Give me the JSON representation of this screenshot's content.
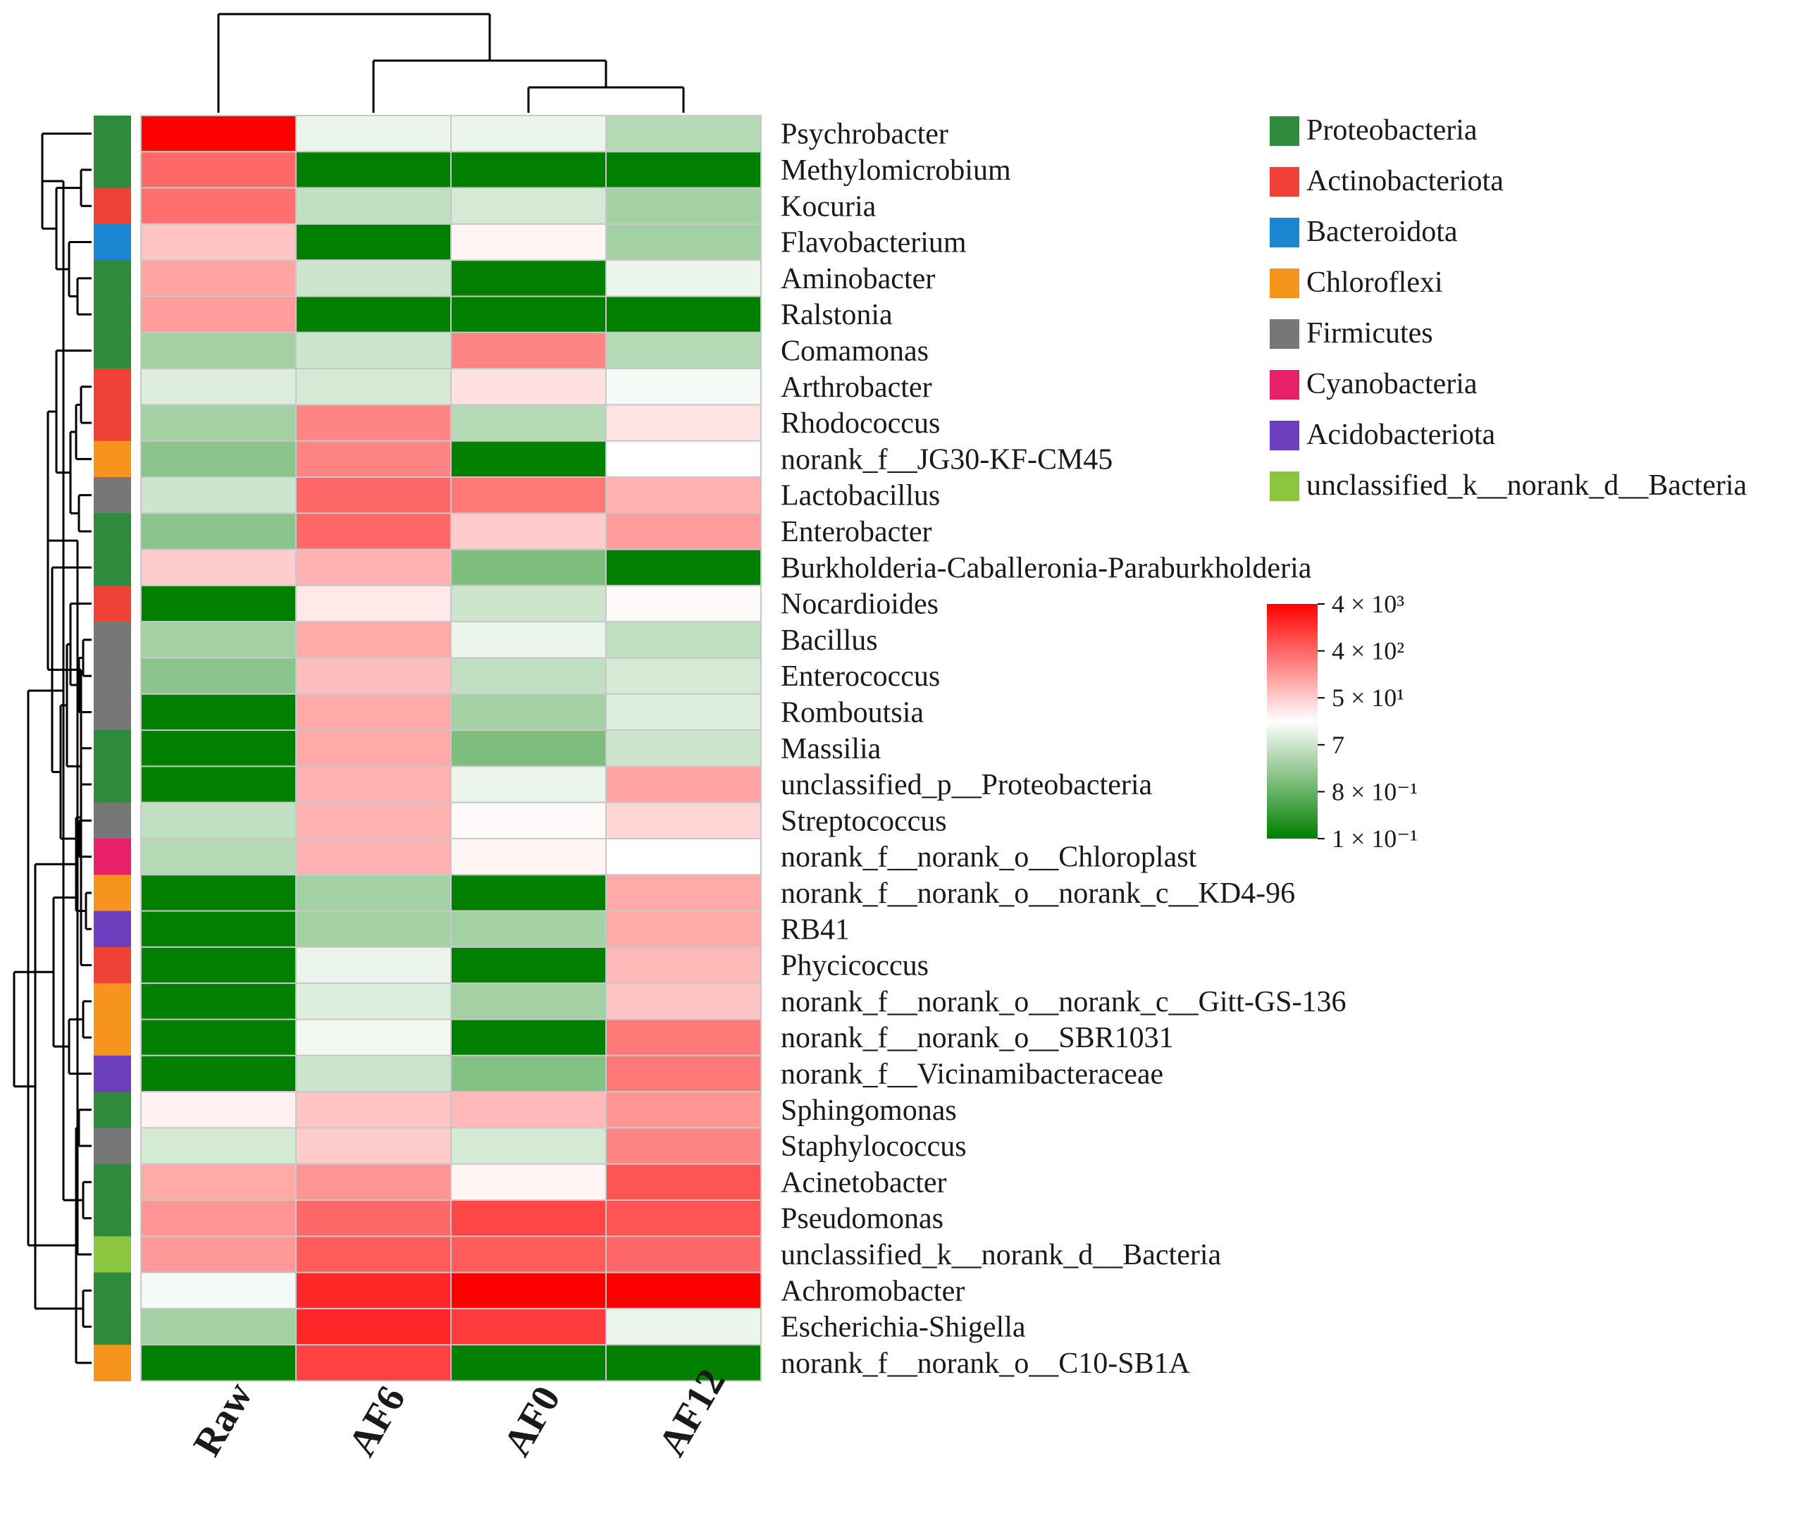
{
  "chart_data": {
    "type": "heatmap",
    "title": "",
    "columns": [
      "Raw",
      "AF6",
      "AF0",
      "AF12"
    ],
    "rows": [
      {
        "genus": "Psychrobacter",
        "phylum": "Proteobacteria",
        "values": [
          4000,
          5,
          5,
          2
        ]
      },
      {
        "genus": "Methylomicrobium",
        "phylum": "Proteobacteria",
        "values": [
          300,
          0.1,
          0.1,
          0.1
        ]
      },
      {
        "genus": "Kocuria",
        "phylum": "Actinobacteriota",
        "values": [
          250,
          2.5,
          3.5,
          1.5
        ]
      },
      {
        "genus": "Flavobacterium",
        "phylum": "Bacteroidota",
        "values": [
          30,
          0.1,
          9,
          1.5
        ]
      },
      {
        "genus": "Aminobacter",
        "phylum": "Proteobacteria",
        "values": [
          70,
          3,
          0.1,
          5
        ]
      },
      {
        "genus": "Ralstonia",
        "phylum": "Proteobacteria",
        "values": [
          80,
          0.1,
          0.1,
          0.1
        ]
      },
      {
        "genus": "Comamonas",
        "phylum": "Proteobacteria",
        "values": [
          1.5,
          3,
          150,
          2
        ]
      },
      {
        "genus": "Arthrobacter",
        "phylum": "Actinobacteriota",
        "values": [
          4,
          3.5,
          15,
          6
        ]
      },
      {
        "genus": "Rhodococcus",
        "phylum": "Actinobacteriota",
        "values": [
          1.5,
          150,
          2,
          14
        ]
      },
      {
        "genus": "norank_f__JG30-KF-CM45",
        "phylum": "Chloroflexi",
        "values": [
          1,
          150,
          0.1,
          7
        ]
      },
      {
        "genus": "Lactobacillus",
        "phylum": "Firmicutes",
        "values": [
          3,
          300,
          200,
          50
        ]
      },
      {
        "genus": "Enterobacter",
        "phylum": "Proteobacteria",
        "values": [
          1,
          300,
          25,
          80
        ]
      },
      {
        "genus": "Burkholderia-Caballeronia-Paraburkholderia",
        "phylum": "Proteobacteria",
        "values": [
          25,
          50,
          0.8,
          0.1
        ]
      },
      {
        "genus": "Nocardioides",
        "phylum": "Actinobacteriota",
        "values": [
          0.1,
          12,
          3,
          8
        ]
      },
      {
        "genus": "Bacillus",
        "phylum": "Firmicutes",
        "values": [
          1.5,
          60,
          5,
          2.5
        ]
      },
      {
        "genus": "Enterococcus",
        "phylum": "Firmicutes",
        "values": [
          1,
          35,
          2.5,
          3.5
        ]
      },
      {
        "genus": "Romboutsia",
        "phylum": "Firmicutes",
        "values": [
          0.1,
          60,
          1.5,
          4
        ]
      },
      {
        "genus": "Massilia",
        "phylum": "Proteobacteria",
        "values": [
          0.1,
          60,
          0.8,
          3
        ]
      },
      {
        "genus": "unclassified_p__Proteobacteria",
        "phylum": "Proteobacteria",
        "values": [
          0.1,
          50,
          5,
          70
        ]
      },
      {
        "genus": "Streptococcus",
        "phylum": "Firmicutes",
        "values": [
          2.5,
          50,
          8,
          20
        ]
      },
      {
        "genus": "norank_f__norank_o__Chloroplast",
        "phylum": "Cyanobacteria",
        "values": [
          2,
          50,
          9,
          7
        ]
      },
      {
        "genus": "norank_f__norank_o__norank_c__KD4-96",
        "phylum": "Chloroflexi",
        "values": [
          0.1,
          1.5,
          0.1,
          60
        ]
      },
      {
        "genus": "RB41",
        "phylum": "Acidobacteriota",
        "values": [
          0.1,
          1.5,
          1.5,
          60
        ]
      },
      {
        "genus": "Phycicoccus",
        "phylum": "Actinobacteriota",
        "values": [
          0.1,
          5,
          0.1,
          40
        ]
      },
      {
        "genus": "norank_f__norank_o__norank_c__Gitt-GS-136",
        "phylum": "Chloroflexi",
        "values": [
          0.1,
          4,
          1.5,
          30
        ]
      },
      {
        "genus": "norank_f__norank_o__SBR1031",
        "phylum": "Chloroflexi",
        "values": [
          0.1,
          5.5,
          0.1,
          200
        ]
      },
      {
        "genus": "norank_f__Vicinamibacteraceae",
        "phylum": "Acidobacteriota",
        "values": [
          0.1,
          3,
          0.9,
          200
        ]
      },
      {
        "genus": "Sphingomonas",
        "phylum": "Proteobacteria",
        "values": [
          10,
          30,
          40,
          100
        ]
      },
      {
        "genus": "Staphylococcus",
        "phylum": "Firmicutes",
        "values": [
          3.5,
          25,
          3.5,
          150
        ]
      },
      {
        "genus": "Acinetobacter",
        "phylum": "Proteobacteria",
        "values": [
          60,
          100,
          9,
          500
        ]
      },
      {
        "genus": "Pseudomonas",
        "phylum": "Proteobacteria",
        "values": [
          100,
          300,
          700,
          500
        ]
      },
      {
        "genus": "unclassified_k__norank_d__Bacteria",
        "phylum": "unclassified_k__norank_d__Bacteria",
        "values": [
          90,
          400,
          400,
          300
        ]
      },
      {
        "genus": "Achromobacter",
        "phylum": "Proteobacteria",
        "values": [
          6,
          1500,
          4000,
          4000
        ]
      },
      {
        "genus": "Escherichia-Shigella",
        "phylum": "Proteobacteria",
        "values": [
          1.5,
          1500,
          900,
          5
        ]
      },
      {
        "genus": "norank_f__norank_o__C10-SB1A",
        "phylum": "Chloroflexi",
        "values": [
          0.1,
          800,
          0.1,
          0.1
        ]
      }
    ],
    "phyla": [
      {
        "name": "Proteobacteria",
        "color": "#2e8b3e"
      },
      {
        "name": "Actinobacteriota",
        "color": "#ef4136"
      },
      {
        "name": "Bacteroidota",
        "color": "#1a85d0"
      },
      {
        "name": "Chloroflexi",
        "color": "#f7941d"
      },
      {
        "name": "Firmicutes",
        "color": "#777777"
      },
      {
        "name": "Cyanobacteria",
        "color": "#e8216a"
      },
      {
        "name": "Acidobacteriota",
        "color": "#6d3fbf"
      },
      {
        "name": "unclassified_k__norank_d__Bacteria",
        "color": "#8cc63f"
      }
    ],
    "color_scale": {
      "type": "log",
      "min": 0.1,
      "max": 4000,
      "low_color": "#007f00",
      "mid_color": "#ffffff",
      "high_color": "#ff0000",
      "ticks": [
        {
          "value": 4000,
          "label": "4 × 10³"
        },
        {
          "value": 400,
          "label": "4 × 10²"
        },
        {
          "value": 50,
          "label": "5 × 10¹"
        },
        {
          "value": 7,
          "label": "7"
        },
        {
          "value": 0.8,
          "label": "8 × 10⁻¹"
        },
        {
          "value": 0.1,
          "label": "1 × 10⁻¹"
        }
      ]
    },
    "column_dendrogram": "((Raw),(AF6,(AF0,AF12)))",
    "row_dendrogram": "hierarchical clustering of genera"
  }
}
